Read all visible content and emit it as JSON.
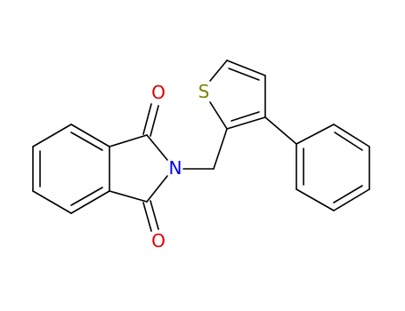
{
  "atoms": [
    "O",
    "N",
    "O",
    "S"
  ]
}
